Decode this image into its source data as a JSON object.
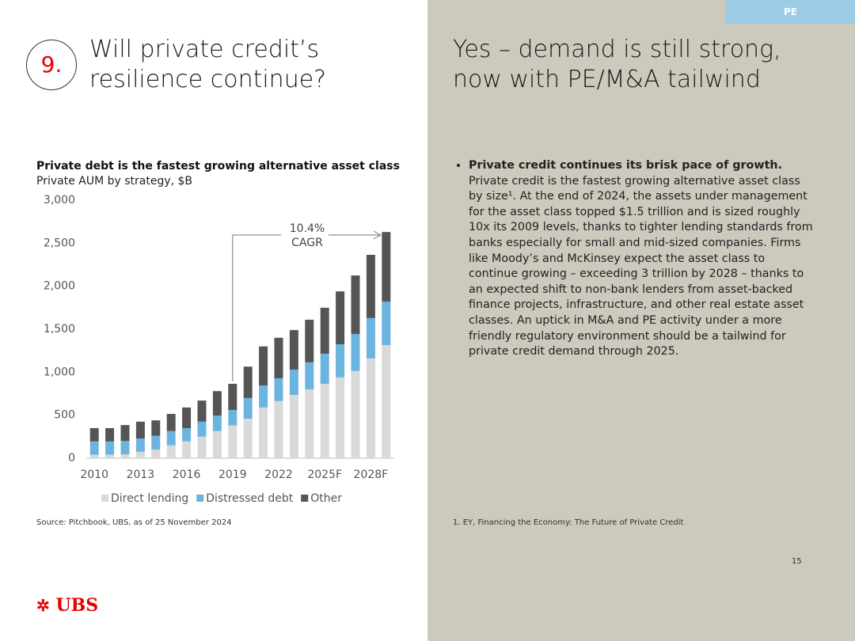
{
  "tab": "PE",
  "slide_number": "9.",
  "left_title": "Will private credit’s resilience continue?",
  "right_title": "Yes – demand is still strong, now with PE/M&A tailwind",
  "bullets": [
    {
      "lead": "Private credit continues its brisk pace of growth.",
      "text": "Private credit is the fastest growing alternative asset class by size¹. At the end of 2024, the assets under management for the asset class topped $1.5 trillion and is sized roughly 10x its 2009 levels, thanks to tighter lending standards from banks especially for small and mid-sized companies. Firms like Moody’s and McKinsey expect the asset class to continue growing – exceeding 3 trillion by 2028 – thanks to an expected shift to non-bank lenders from asset-backed finance projects, infrastructure, and other real estate asset classes. An uptick in M&A and PE activity under a more friendly regulatory environment should be a tailwind for private credit demand through 2025."
    }
  ],
  "footnote": "1. EY, Financing the Economy: The Future of Private Credit",
  "source": "Source: Pitchbook, UBS, as of 25 November 2024",
  "page_number": "15",
  "logo": "UBS",
  "chart_data": {
    "type": "stacked_bar",
    "title": "Private debt is the fastest growing alternative asset class",
    "subtitle": "Private AUM by strategy, $B",
    "annotation": [
      "10.4%",
      "CAGR"
    ],
    "categories": [
      "2010",
      null,
      null,
      "2013",
      null,
      null,
      "2016",
      null,
      null,
      "2019",
      null,
      null,
      "2022",
      null,
      null,
      "2025F",
      null,
      null,
      "2028F",
      null
    ],
    "series": [
      {
        "name": "Direct lending",
        "color": "#d9d9d9",
        "values": [
          40,
          40,
          45,
          75,
          100,
          150,
          195,
          250,
          315,
          380,
          460,
          590,
          665,
          735,
          800,
          865,
          940,
          1015,
          1160,
          1315
        ]
      },
      {
        "name": "Distressed debt",
        "color": "#6cb4e0",
        "values": [
          155,
          155,
          155,
          155,
          160,
          165,
          155,
          175,
          180,
          180,
          240,
          255,
          265,
          295,
          315,
          350,
          385,
          430,
          470,
          505
        ]
      },
      {
        "name": "Other",
        "color": "#555555",
        "values": [
          155,
          155,
          185,
          195,
          180,
          200,
          240,
          245,
          285,
          305,
          365,
          455,
          470,
          460,
          495,
          535,
          615,
          680,
          735,
          810
        ]
      }
    ],
    "ylim": [
      0,
      3000
    ],
    "yticks": [
      0,
      500,
      {
        "value": 1000,
        "label": "1,000"
      },
      {
        "value": 1500,
        "label": "1,500"
      },
      {
        "value": 2000,
        "label": "2,000"
      },
      {
        "value": 2500,
        "label": "2,500"
      },
      {
        "value": 3000,
        "label": "3,000"
      }
    ],
    "legend": "bottom"
  }
}
